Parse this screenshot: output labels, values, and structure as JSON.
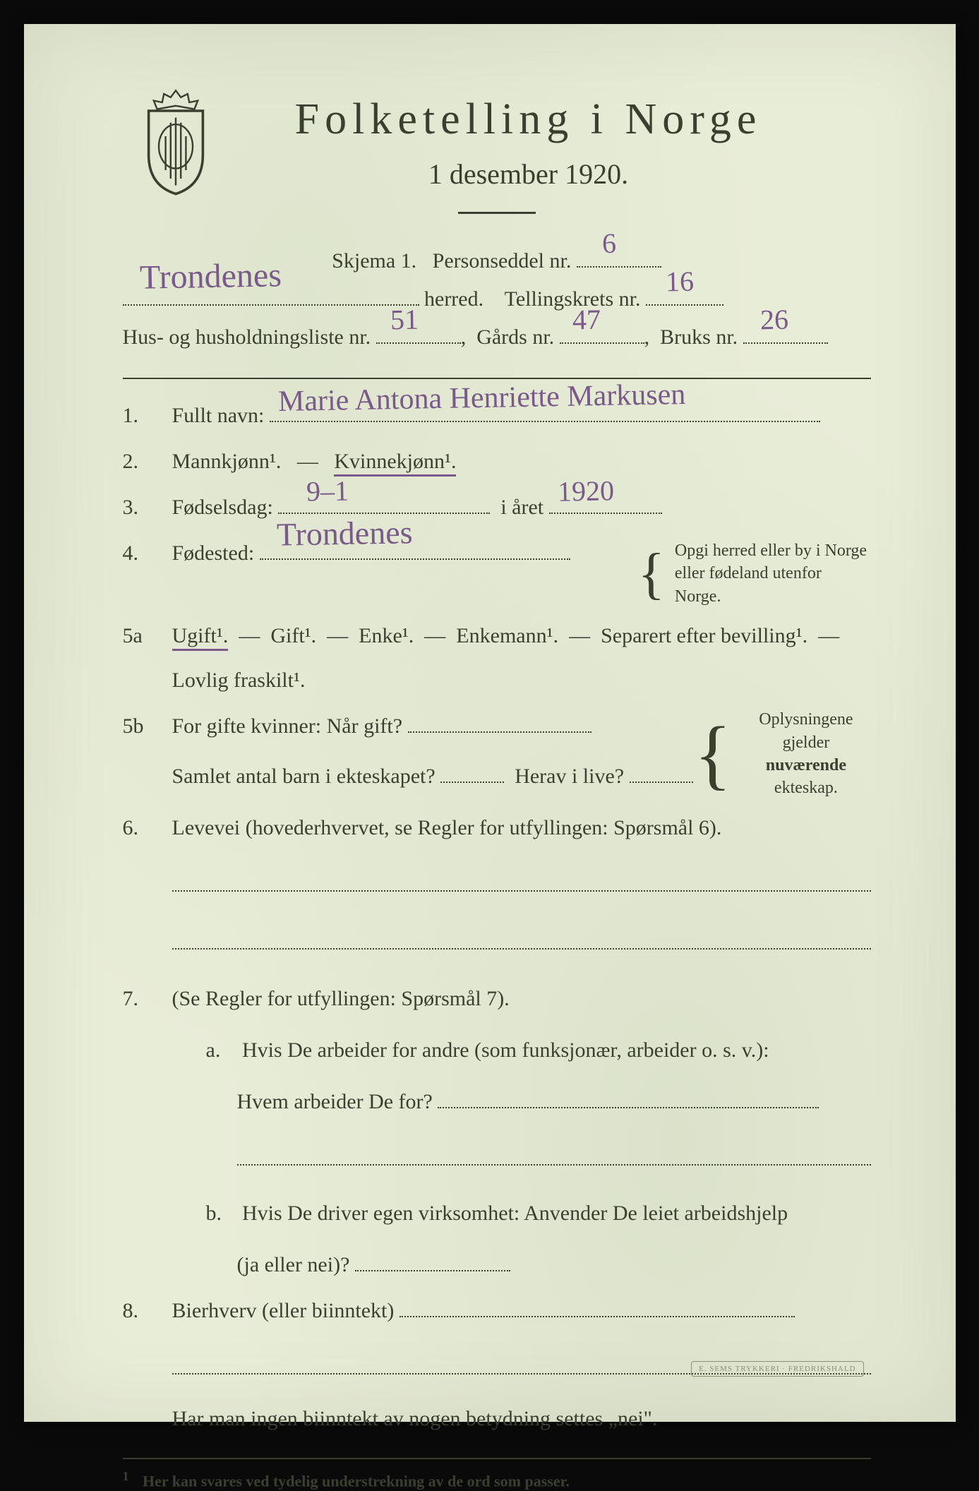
{
  "colors": {
    "paper_bg": "#e8edd8",
    "ink": "#3a4030",
    "handwriting": "#7a5a8a",
    "stamp": "#8a9078",
    "page_frame": "#0a0a0a"
  },
  "typography": {
    "title_fontsize_pt": 46,
    "subtitle_fontsize_pt": 30,
    "body_fontsize_pt": 22,
    "note_fontsize_pt": 18,
    "footnote_fontsize_pt": 16,
    "handwriting_fontsize_pt": 30,
    "body_font": "serif",
    "handwriting_font": "cursive"
  },
  "header": {
    "title": "Folketelling i Norge",
    "subtitle": "1 desember 1920.",
    "crest_label": "norwegian-coat-of-arms"
  },
  "form_top": {
    "skjema_label": "Skjema 1.",
    "personseddel_label": "Personseddel nr.",
    "personseddel_nr": "6",
    "herred_label": "herred.",
    "herred_value": "Trondenes",
    "tellingskrets_label": "Tellingskrets nr.",
    "tellingskrets_nr": "16",
    "husliste_label": "Hus- og husholdningsliste nr.",
    "husliste_nr": "51",
    "gards_label": "Gårds nr.",
    "gards_nr": "47",
    "bruks_label": "Bruks nr.",
    "bruks_nr": "26"
  },
  "q1": {
    "num": "1.",
    "label": "Fullt navn:",
    "value": "Marie Antona Henriette Markusen"
  },
  "q2": {
    "num": "2.",
    "mann": "Mannkjønn¹.",
    "dash": "—",
    "kvinne": "Kvinnekjønn¹.",
    "selected": "kvinne"
  },
  "q3": {
    "num": "3.",
    "label": "Fødselsdag:",
    "day_value": "9–1",
    "year_label": "i året",
    "year_value": "1920"
  },
  "q4": {
    "num": "4.",
    "label": "Fødested:",
    "value": "Trondenes",
    "note_l1": "Opgi herred eller by i Norge",
    "note_l2": "eller fødeland utenfor Norge."
  },
  "q5a": {
    "num": "5a",
    "options": [
      "Ugift¹.",
      "Gift¹.",
      "Enke¹.",
      "Enkemann¹.",
      "Separert efter bevilling¹."
    ],
    "dash": "—",
    "line2": "Lovlig fraskilt¹.",
    "selected_index": 0
  },
  "q5b": {
    "num": "5b",
    "l1a": "For gifte kvinner:  Når gift?",
    "l2a": "Samlet antal barn i ekteskapet?",
    "l2b": "Herav i live?",
    "note_l1": "Oplysningene",
    "note_l2": "gjelder nuværende",
    "note_l3": "ekteskap."
  },
  "q6": {
    "num": "6.",
    "text": "Levevei (hovederhvervet, se Regler for utfyllingen:  Spørsmål 6)."
  },
  "q7": {
    "num": "7.",
    "intro": "(Se Regler for utfyllingen:  Spørsmål 7).",
    "a_num": "a.",
    "a_l1": "Hvis De arbeider for andre (som funksjonær, arbeider o. s. v.):",
    "a_l2": "Hvem arbeider De for?",
    "b_num": "b.",
    "b_l1": "Hvis De driver egen virksomhet:  Anvender De leiet arbeidshjelp",
    "b_l2": "(ja eller nei)?"
  },
  "q8": {
    "num": "8.",
    "label": "Bierhverv (eller biinntekt)"
  },
  "closing": "Har man ingen biinntekt av nogen betydning settes „nei\".",
  "footnote": {
    "mark": "1",
    "text": "Her kan svares ved tydelig understrekning av de ord som passer."
  },
  "stamp": "E. SEMS TRYKKERI · FREDRIKSHALD"
}
